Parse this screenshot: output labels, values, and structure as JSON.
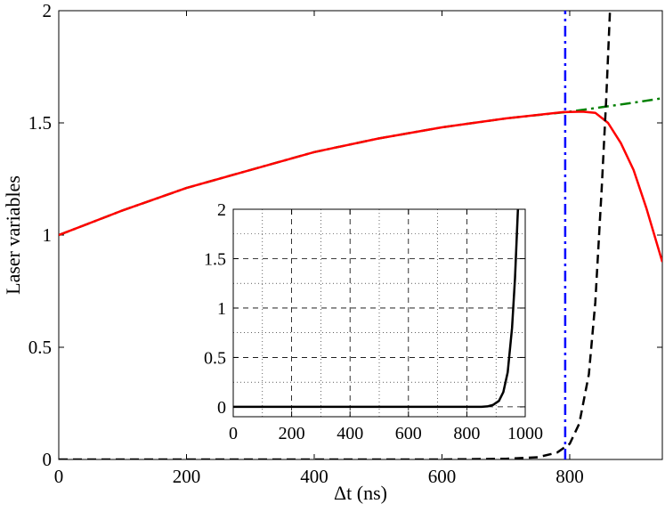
{
  "chart_data": [
    {
      "type": "line",
      "title": "",
      "xlabel": "Δt (ns)",
      "ylabel": "Laser variables",
      "xlim": [
        0,
        945
      ],
      "ylim": [
        0,
        2
      ],
      "xticks": [
        0,
        200,
        400,
        600,
        800
      ],
      "yticks": [
        0,
        0.5,
        1,
        1.5,
        2
      ],
      "xtick_labels": [
        "0",
        "200",
        "400",
        "600",
        "800"
      ],
      "ytick_labels": [
        "0",
        "0.5",
        "1",
        "1.5",
        "2"
      ],
      "grid": false,
      "legend": "none",
      "series": [
        {
          "color": "#008000",
          "style": "dash-dot",
          "x": [
            0,
            100,
            200,
            300,
            400,
            500,
            600,
            700,
            800,
            850,
            900,
            945
          ],
          "y": [
            1.0,
            1.11,
            1.21,
            1.29,
            1.37,
            1.43,
            1.48,
            1.52,
            1.55,
            1.57,
            1.59,
            1.61
          ]
        },
        {
          "color": "#ff0000",
          "style": "solid",
          "x": [
            0,
            100,
            200,
            300,
            400,
            500,
            600,
            700,
            790,
            820,
            840,
            860,
            880,
            900,
            920,
            945
          ],
          "y": [
            1.0,
            1.11,
            1.21,
            1.29,
            1.37,
            1.43,
            1.48,
            1.52,
            1.548,
            1.55,
            1.545,
            1.5,
            1.41,
            1.29,
            1.12,
            0.88
          ]
        },
        {
          "color": "#000000",
          "style": "dashed",
          "x": [
            0,
            600,
            700,
            750,
            780,
            800,
            815,
            830,
            840,
            850,
            857,
            863,
            870
          ],
          "y": [
            0.0,
            0.0,
            0.003,
            0.01,
            0.03,
            0.07,
            0.16,
            0.38,
            0.7,
            1.2,
            1.6,
            2.0,
            2.5
          ]
        },
        {
          "color": "#0000ff",
          "style": "dash-dot",
          "x": [
            793,
            793
          ],
          "y": [
            0,
            2
          ]
        }
      ]
    },
    {
      "type": "line",
      "title": "",
      "xlabel": "",
      "ylabel": "",
      "xlim": [
        0,
        1000
      ],
      "ylim": [
        -0.1,
        2
      ],
      "xticks": [
        0,
        200,
        400,
        600,
        800,
        1000
      ],
      "yticks": [
        0,
        0.5,
        1,
        1.5,
        2
      ],
      "xtick_labels": [
        "0",
        "200",
        "400",
        "600",
        "800",
        "1000"
      ],
      "ytick_labels": [
        "0",
        "0.5",
        "1",
        "1.5",
        "2"
      ],
      "grid": true,
      "legend": "none",
      "series": [
        {
          "color": "#000000",
          "style": "solid",
          "x": [
            0,
            850,
            870,
            890,
            910,
            925,
            940,
            955,
            965,
            975
          ],
          "y": [
            0.0,
            0.0,
            0.005,
            0.02,
            0.06,
            0.15,
            0.35,
            0.8,
            1.3,
            2.0
          ]
        }
      ]
    }
  ]
}
